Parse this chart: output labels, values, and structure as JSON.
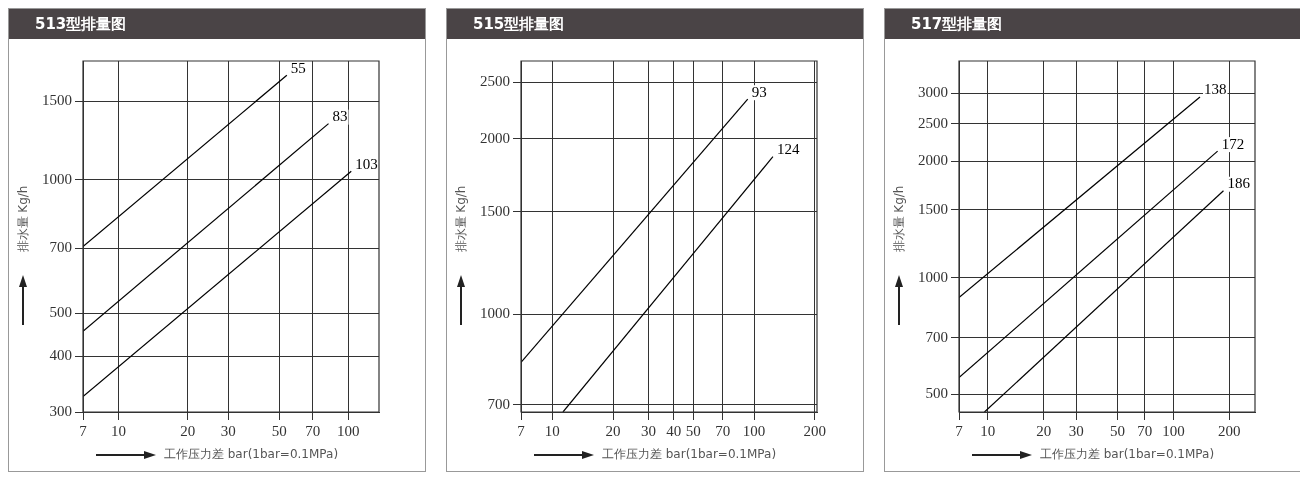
{
  "chart_data": [
    {
      "type": "line",
      "title": "513型排量图",
      "xlabel": "工作压力差 bar(1bar=0.1MPa)",
      "ylabel": "排水量 Kg/h",
      "log": "xy",
      "grid": true,
      "legend": false,
      "marker": "none",
      "line_style": "solid",
      "xlim": [
        7,
        136
      ],
      "ylim": [
        300,
        1850
      ],
      "xticks": [
        7,
        10,
        20,
        30,
        50,
        70,
        100
      ],
      "yticks": [
        300,
        400,
        500,
        700,
        1000,
        1500
      ],
      "series": [
        {
          "name": "55",
          "color": "#000000",
          "x": [
            7,
            54
          ],
          "values": [
            707,
            1718
          ]
        },
        {
          "name": "83",
          "color": "#000000",
          "x": [
            7,
            82
          ],
          "values": [
            456,
            1337
          ]
        },
        {
          "name": "103",
          "color": "#000000",
          "x": [
            7,
            103
          ],
          "values": [
            325,
            1045
          ]
        }
      ]
    },
    {
      "type": "line",
      "title": "515型排量图",
      "xlabel": "工作压力差 bar(1bar=0.1MPa)",
      "ylabel": "排水量 Kg/h",
      "log": "xy",
      "grid": true,
      "legend": false,
      "marker": "none",
      "line_style": "solid",
      "xlim": [
        7,
        205
      ],
      "ylim": [
        680,
        2720
      ],
      "xticks": [
        7,
        10,
        20,
        30,
        40,
        50,
        70,
        100,
        200
      ],
      "yticks": [
        700,
        1000,
        1500,
        2000,
        2500
      ],
      "series": [
        {
          "name": "93",
          "color": "#000000",
          "x": [
            7,
            93
          ],
          "values": [
            827,
            2339
          ]
        },
        {
          "name": "124",
          "color": "#000000",
          "x": [
            11.3,
            124
          ],
          "values": [
            680,
            1864
          ]
        }
      ]
    },
    {
      "type": "line",
      "title": "517型排量图",
      "xlabel": "工作压力差 bar(1bar=0.1MPa)",
      "ylabel": "排水量 Kg/h",
      "log": "xy",
      "grid": true,
      "legend": false,
      "marker": "none",
      "line_style": "solid",
      "xlim": [
        7,
        275
      ],
      "ylim": [
        450,
        3630
      ],
      "xticks": [
        7,
        10,
        20,
        30,
        50,
        70,
        100,
        200
      ],
      "yticks": [
        500,
        700,
        1000,
        1500,
        2000,
        2500,
        3000
      ],
      "series": [
        {
          "name": "138",
          "color": "#000000",
          "x": [
            7,
            139
          ],
          "values": [
            889,
            2930
          ]
        },
        {
          "name": "172",
          "color": "#000000",
          "x": [
            7,
            173
          ],
          "values": [
            552,
            2124
          ]
        },
        {
          "name": "186",
          "color": "#000000",
          "x": [
            9.6,
            186
          ],
          "values": [
            450,
            1678
          ]
        }
      ]
    }
  ]
}
